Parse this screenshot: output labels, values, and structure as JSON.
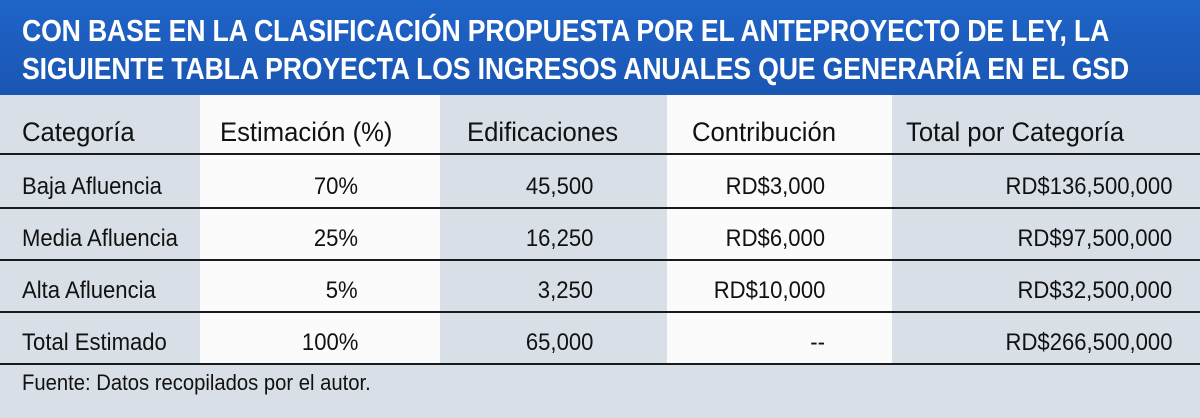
{
  "header": {
    "line1": "CON BASE EN LA CLASIFICACIÓN PROPUESTA POR EL ANTEPROYECTO DE LEY, LA",
    "line2": "SIGUIENTE TABLA PROYECTA LOS INGRESOS ANUALES QUE GENERARÍA EN EL GSD"
  },
  "table": {
    "columns": [
      "Categoría",
      "Estimación (%)",
      "Edificaciones",
      "Contribución",
      "Total por Categoría"
    ],
    "rows": [
      [
        "Baja Afluencia",
        "70%",
        "45,500",
        "RD$3,000",
        "RD$136,500,000"
      ],
      [
        "Media Afluencia",
        "25%",
        "16,250",
        "RD$6,000",
        "RD$97,500,000"
      ],
      [
        "Alta Afluencia",
        "5%",
        "3,250",
        "RD$10,000",
        "RD$32,500,000"
      ],
      [
        "Total Estimado",
        "100%",
        "65,000",
        "--",
        "RD$266,500,000"
      ]
    ]
  },
  "footer": "Fuente: Datos recopilados por el autor.",
  "colors": {
    "header_bg": "#1a56b4",
    "tinted_col": "#d9dfe7",
    "white_col": "#fbfbfb",
    "rule": "#1a1a1a"
  }
}
